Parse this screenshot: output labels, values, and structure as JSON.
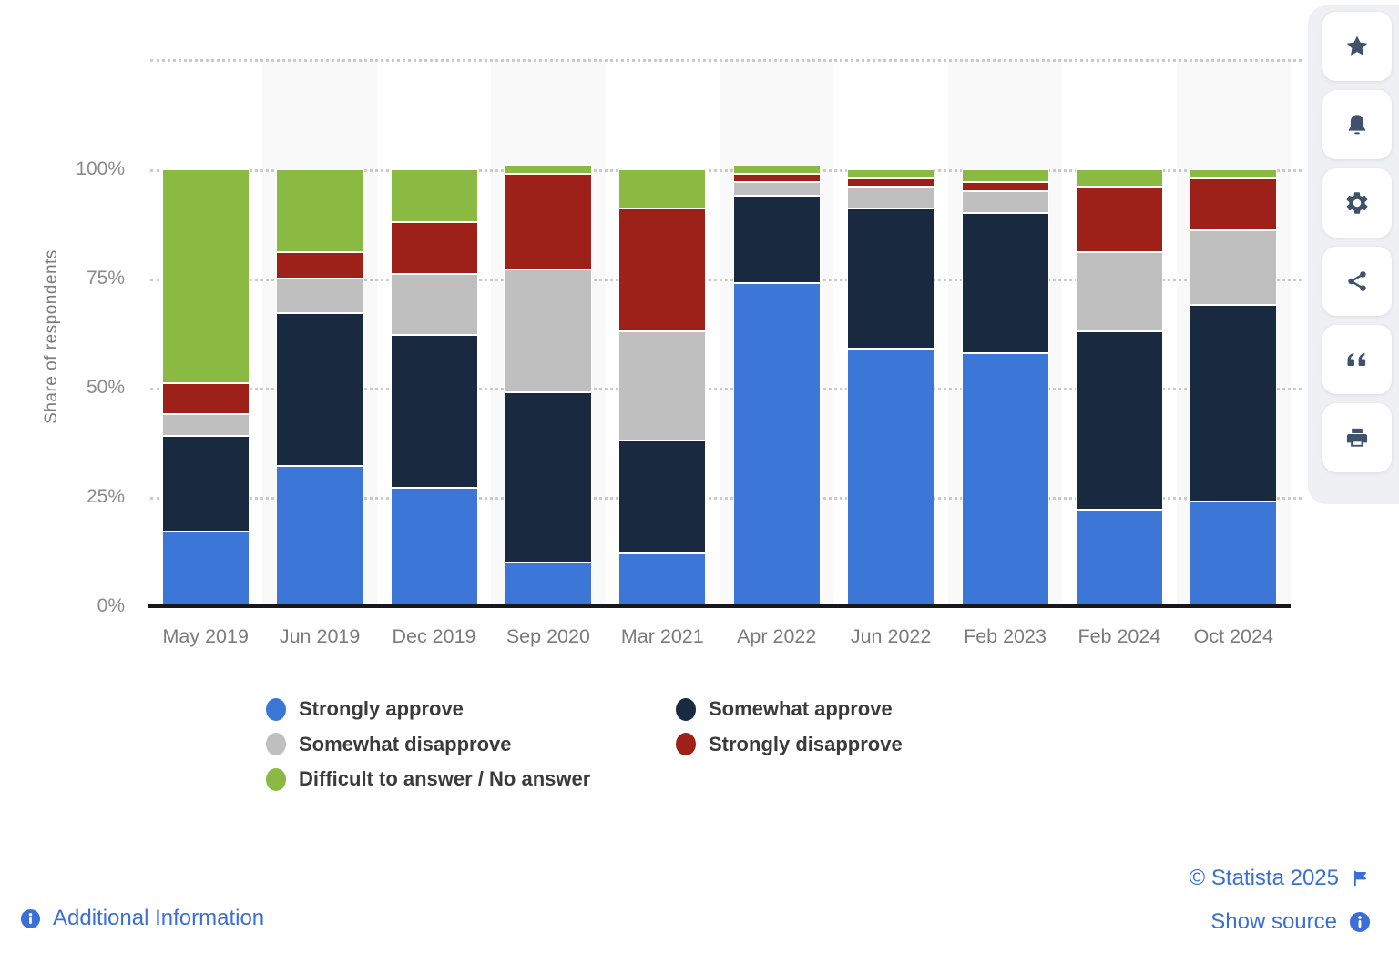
{
  "chart_data": {
    "type": "bar",
    "stacked": true,
    "ylabel": "Share of respondents",
    "categories": [
      "May 2019",
      "Jun 2019",
      "Dec 2019",
      "Sep 2020",
      "Mar 2021",
      "Apr 2022",
      "Jun 2022",
      "Feb 2023",
      "Feb 2024",
      "Oct 2024"
    ],
    "series": [
      {
        "name": "Strongly approve",
        "color": "#3C76D6",
        "values": [
          17,
          32,
          27,
          10,
          12,
          74,
          59,
          58,
          22,
          24
        ]
      },
      {
        "name": "Somewhat approve",
        "color": "#19293F",
        "values": [
          22,
          35,
          35,
          39,
          26,
          20,
          32,
          32,
          41,
          45
        ]
      },
      {
        "name": "Somewhat disapprove",
        "color": "#BFBFBF",
        "values": [
          5,
          8,
          14,
          28,
          25,
          3,
          5,
          5,
          18,
          17
        ]
      },
      {
        "name": "Strongly disapprove",
        "color": "#9E2119",
        "values": [
          7,
          6,
          12,
          22,
          28,
          2,
          2,
          2,
          15,
          12
        ]
      },
      {
        "name": "Difficult to answer / No answer",
        "color": "#8BBA42",
        "values": [
          49,
          19,
          12,
          2,
          9,
          2,
          2,
          3,
          4,
          2
        ]
      }
    ],
    "yticks": [
      {
        "label": "0%",
        "value": 0
      },
      {
        "label": "25%",
        "value": 25
      },
      {
        "label": "50%",
        "value": 50
      },
      {
        "label": "75%",
        "value": 75
      },
      {
        "label": "100%",
        "value": 100
      }
    ],
    "ylim": [
      0,
      125
    ],
    "grid": "horizontal-dotted",
    "legend_position": "bottom-left"
  },
  "sidebar": {
    "buttons": [
      {
        "name": "favorite",
        "icon": "star-icon"
      },
      {
        "name": "notifications",
        "icon": "bell-icon"
      },
      {
        "name": "settings",
        "icon": "gear-icon"
      },
      {
        "name": "share",
        "icon": "share-icon"
      },
      {
        "name": "cite",
        "icon": "quote-icon"
      },
      {
        "name": "print",
        "icon": "printer-icon"
      }
    ]
  },
  "footer": {
    "additional_information": "Additional Information",
    "copyright": "© Statista 2025",
    "show_source": "Show source"
  },
  "colors": {
    "link_blue": "#3A6FD8",
    "icon_slate": "#3E526C",
    "axis_line": "#16181D",
    "grid_dot": "#CBCBCB",
    "band": "#F9F9FA"
  }
}
